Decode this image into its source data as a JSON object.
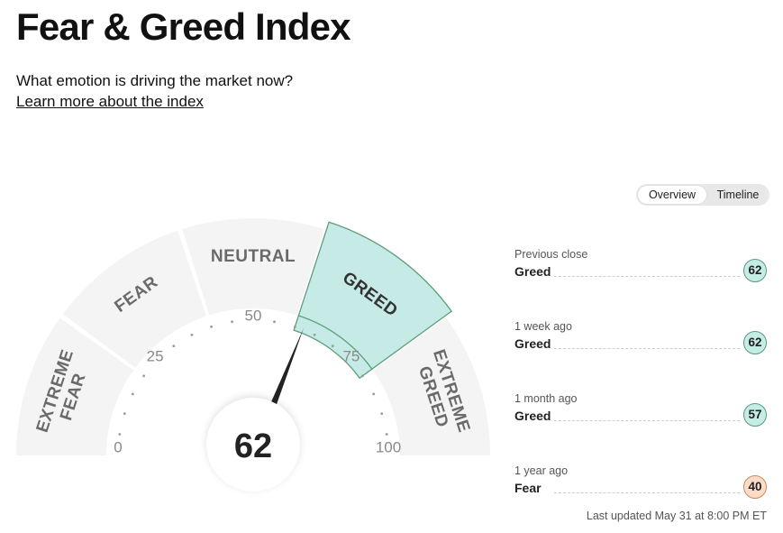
{
  "header": {
    "title": "Fear & Greed Index",
    "subtitle": "What emotion is driving the market now?",
    "learn_more": "Learn more about the index"
  },
  "tabs": [
    {
      "label": "Overview",
      "active": true
    },
    {
      "label": "Timeline",
      "active": false
    }
  ],
  "gauge": {
    "value": "62",
    "segments": [
      {
        "lines": [
          "EXTREME",
          "FEAR"
        ]
      },
      {
        "lines": [
          "FEAR"
        ]
      },
      {
        "lines": [
          "NEUTRAL"
        ]
      },
      {
        "lines": [
          "GREED"
        ]
      },
      {
        "lines": [
          "EXTREME",
          "GREED"
        ]
      }
    ],
    "active_segment": 3,
    "scale_labels": [
      "0",
      "25",
      "50",
      "75",
      "100"
    ],
    "colors": {
      "segment": "#f4f4f4",
      "active_fill": "#c6ebe6",
      "active_stroke": "#5e9e79",
      "needle": "#222222"
    }
  },
  "history": [
    {
      "label": "Previous close",
      "rating": "Greed",
      "value": "62",
      "tone": "greed"
    },
    {
      "label": "1 week ago",
      "rating": "Greed",
      "value": "62",
      "tone": "greed"
    },
    {
      "label": "1 month ago",
      "rating": "Greed",
      "value": "57",
      "tone": "greed"
    },
    {
      "label": "1 year ago",
      "rating": "Fear",
      "value": "40",
      "tone": "fear"
    }
  ],
  "last_updated": "Last updated May 31 at 8:00 PM ET"
}
